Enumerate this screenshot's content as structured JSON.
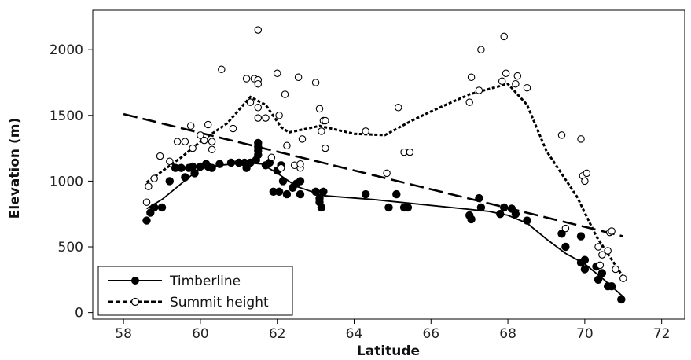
{
  "chart_data": {
    "type": "scatter",
    "xlabel": "Latitude",
    "ylabel": "Elevation (m)",
    "xlim": [
      57.2,
      72.6
    ],
    "ylim": [
      -50,
      2300
    ],
    "xticks": [
      "58",
      "60",
      "62",
      "64",
      "66",
      "68",
      "70",
      "72"
    ],
    "yticks": [
      "0",
      "500",
      "1000",
      "1500",
      "2000"
    ],
    "grid": false,
    "legend_position": "bottom-left",
    "series": [
      {
        "name": "Timberline",
        "marker": "filled-circle",
        "color": "#000000",
        "points": [
          [
            58.6,
            700
          ],
          [
            58.7,
            760
          ],
          [
            58.8,
            800
          ],
          [
            59.0,
            800
          ],
          [
            59.2,
            1000
          ],
          [
            59.35,
            1100
          ],
          [
            59.5,
            1100
          ],
          [
            59.6,
            1030
          ],
          [
            59.7,
            1100
          ],
          [
            59.8,
            1110
          ],
          [
            59.85,
            1060
          ],
          [
            60.0,
            1110
          ],
          [
            60.15,
            1130
          ],
          [
            60.2,
            1110
          ],
          [
            60.3,
            1100
          ],
          [
            60.5,
            1130
          ],
          [
            60.8,
            1140
          ],
          [
            61.0,
            1140
          ],
          [
            61.15,
            1140
          ],
          [
            61.2,
            1100
          ],
          [
            61.3,
            1140
          ],
          [
            61.45,
            1160
          ],
          [
            61.5,
            1200
          ],
          [
            61.5,
            1230
          ],
          [
            61.5,
            1260
          ],
          [
            61.5,
            1290
          ],
          [
            61.7,
            1120
          ],
          [
            61.8,
            1140
          ],
          [
            61.9,
            920
          ],
          [
            62.0,
            1080
          ],
          [
            62.05,
            920
          ],
          [
            62.1,
            1120
          ],
          [
            62.15,
            1000
          ],
          [
            62.25,
            900
          ],
          [
            62.4,
            950
          ],
          [
            62.5,
            980
          ],
          [
            62.6,
            1000
          ],
          [
            62.6,
            900
          ],
          [
            63.0,
            920
          ],
          [
            63.1,
            870
          ],
          [
            63.1,
            840
          ],
          [
            63.15,
            800
          ],
          [
            63.2,
            920
          ],
          [
            64.3,
            900
          ],
          [
            64.9,
            800
          ],
          [
            65.1,
            900
          ],
          [
            65.3,
            800
          ],
          [
            65.4,
            800
          ],
          [
            67.0,
            740
          ],
          [
            67.05,
            710
          ],
          [
            67.25,
            870
          ],
          [
            67.3,
            800
          ],
          [
            67.8,
            750
          ],
          [
            67.9,
            800
          ],
          [
            68.1,
            790
          ],
          [
            68.2,
            750
          ],
          [
            68.5,
            700
          ],
          [
            69.4,
            600
          ],
          [
            69.5,
            500
          ],
          [
            69.9,
            580
          ],
          [
            69.9,
            380
          ],
          [
            70.0,
            400
          ],
          [
            70.0,
            330
          ],
          [
            70.3,
            350
          ],
          [
            70.35,
            250
          ],
          [
            70.45,
            300
          ],
          [
            70.6,
            200
          ],
          [
            70.7,
            200
          ],
          [
            70.95,
            100
          ]
        ]
      },
      {
        "name": "Summit height",
        "marker": "open-circle",
        "color": "#000000",
        "points": [
          [
            58.6,
            840
          ],
          [
            58.65,
            960
          ],
          [
            58.8,
            1020
          ],
          [
            58.95,
            1190
          ],
          [
            59.2,
            1150
          ],
          [
            59.4,
            1300
          ],
          [
            59.6,
            1300
          ],
          [
            59.75,
            1420
          ],
          [
            59.8,
            1250
          ],
          [
            60.0,
            1350
          ],
          [
            60.1,
            1310
          ],
          [
            60.2,
            1430
          ],
          [
            60.3,
            1300
          ],
          [
            60.3,
            1240
          ],
          [
            60.55,
            1850
          ],
          [
            60.85,
            1400
          ],
          [
            61.2,
            1780
          ],
          [
            61.3,
            1600
          ],
          [
            61.4,
            1780
          ],
          [
            61.5,
            2150
          ],
          [
            61.5,
            1770
          ],
          [
            61.5,
            1740
          ],
          [
            61.5,
            1560
          ],
          [
            61.5,
            1480
          ],
          [
            61.7,
            1480
          ],
          [
            61.85,
            1180
          ],
          [
            62.0,
            1820
          ],
          [
            62.05,
            1500
          ],
          [
            62.1,
            1100
          ],
          [
            62.2,
            1660
          ],
          [
            62.25,
            1270
          ],
          [
            62.45,
            1120
          ],
          [
            62.55,
            1790
          ],
          [
            62.6,
            1100
          ],
          [
            62.6,
            1130
          ],
          [
            62.65,
            1320
          ],
          [
            63.0,
            1750
          ],
          [
            63.1,
            1550
          ],
          [
            63.15,
            1380
          ],
          [
            63.2,
            1460
          ],
          [
            63.25,
            1460
          ],
          [
            63.25,
            1250
          ],
          [
            64.3,
            1380
          ],
          [
            64.85,
            1060
          ],
          [
            65.15,
            1560
          ],
          [
            65.3,
            1220
          ],
          [
            65.45,
            1220
          ],
          [
            67.0,
            1600
          ],
          [
            67.05,
            1790
          ],
          [
            67.25,
            1690
          ],
          [
            67.3,
            2000
          ],
          [
            67.85,
            1760
          ],
          [
            67.9,
            2100
          ],
          [
            67.95,
            1820
          ],
          [
            68.2,
            1740
          ],
          [
            68.25,
            1800
          ],
          [
            68.5,
            1710
          ],
          [
            69.4,
            1350
          ],
          [
            69.5,
            640
          ],
          [
            69.9,
            1320
          ],
          [
            69.95,
            1040
          ],
          [
            70.0,
            1000
          ],
          [
            70.05,
            1060
          ],
          [
            70.35,
            500
          ],
          [
            70.4,
            360
          ],
          [
            70.45,
            440
          ],
          [
            70.6,
            470
          ],
          [
            70.65,
            610
          ],
          [
            70.7,
            620
          ],
          [
            70.8,
            330
          ],
          [
            71.0,
            260
          ]
        ]
      }
    ],
    "trend_lines": [
      {
        "series": "Timberline",
        "style": "solid",
        "points": [
          [
            58.6,
            790
          ],
          [
            59.0,
            860
          ],
          [
            60.0,
            1100
          ],
          [
            60.5,
            1120
          ],
          [
            61.2,
            1140
          ],
          [
            61.6,
            1130
          ],
          [
            62.0,
            1060
          ],
          [
            62.5,
            960
          ],
          [
            63.2,
            890
          ],
          [
            64.5,
            860
          ],
          [
            65.5,
            830
          ],
          [
            67.5,
            770
          ],
          [
            68.0,
            740
          ],
          [
            68.5,
            680
          ],
          [
            69.0,
            560
          ],
          [
            69.5,
            450
          ],
          [
            70.0,
            370
          ],
          [
            70.5,
            250
          ],
          [
            71.0,
            120
          ]
        ]
      },
      {
        "series": "Summit height",
        "style": "dotted",
        "points": [
          [
            58.6,
            990
          ],
          [
            59.5,
            1180
          ],
          [
            60.0,
            1300
          ],
          [
            60.7,
            1440
          ],
          [
            61.3,
            1640
          ],
          [
            61.7,
            1580
          ],
          [
            62.1,
            1410
          ],
          [
            62.3,
            1370
          ],
          [
            63.1,
            1420
          ],
          [
            64.0,
            1360
          ],
          [
            64.8,
            1350
          ],
          [
            65.5,
            1460
          ],
          [
            66.0,
            1530
          ],
          [
            67.0,
            1660
          ],
          [
            68.0,
            1740
          ],
          [
            68.5,
            1580
          ],
          [
            69.0,
            1230
          ],
          [
            69.8,
            880
          ],
          [
            70.3,
            580
          ],
          [
            71.0,
            270
          ]
        ]
      },
      {
        "series": "linear fit",
        "style": "dashed",
        "points": [
          [
            58.0,
            1510
          ],
          [
            71.0,
            580
          ]
        ]
      }
    ]
  }
}
